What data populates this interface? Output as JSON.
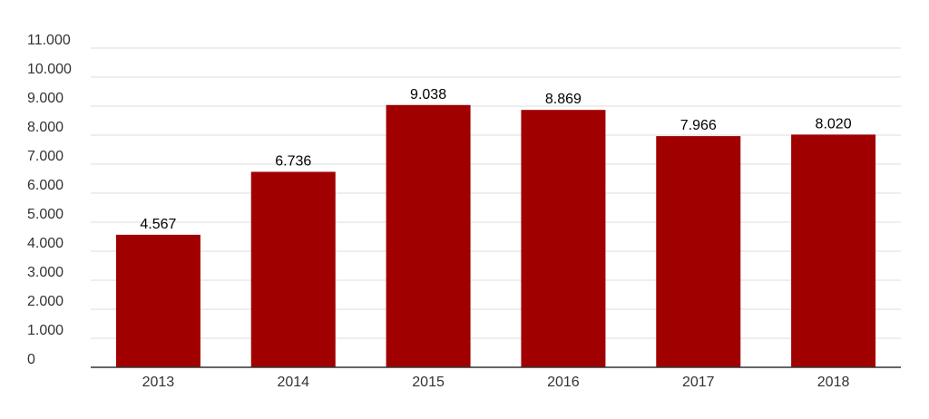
{
  "chart_data": {
    "type": "bar",
    "title": "",
    "xlabel": "",
    "ylabel": "",
    "categories": [
      "2013",
      "2014",
      "2015",
      "2016",
      "2017",
      "2018"
    ],
    "values": [
      4567,
      6736,
      9038,
      8869,
      7966,
      8020
    ],
    "value_labels": [
      "4.567",
      "6.736",
      "9.038",
      "8.869",
      "7.966",
      "8.020"
    ],
    "ylim": [
      0,
      11000
    ],
    "yticks": [
      0,
      1000,
      2000,
      3000,
      4000,
      5000,
      6000,
      7000,
      8000,
      9000,
      10000,
      11000
    ],
    "ytick_labels": [
      "0",
      "1.000",
      "2.000",
      "3.000",
      "4.000",
      "5.000",
      "6.000",
      "7.000",
      "8.000",
      "9.000",
      "10.000",
      "11.000"
    ],
    "grid": true,
    "legend": "none",
    "colors": {
      "bar": "#a00000",
      "grid": "#dddddd",
      "axis": "#333333"
    }
  }
}
